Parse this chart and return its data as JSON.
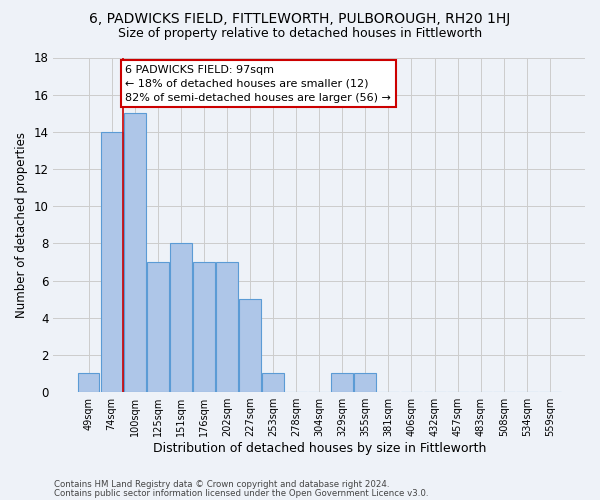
{
  "title": "6, PADWICKS FIELD, FITTLEWORTH, PULBOROUGH, RH20 1HJ",
  "subtitle": "Size of property relative to detached houses in Fittleworth",
  "xlabel": "Distribution of detached houses by size in Fittleworth",
  "ylabel": "Number of detached properties",
  "categories": [
    "49sqm",
    "74sqm",
    "100sqm",
    "125sqm",
    "151sqm",
    "176sqm",
    "202sqm",
    "227sqm",
    "253sqm",
    "278sqm",
    "304sqm",
    "329sqm",
    "355sqm",
    "381sqm",
    "406sqm",
    "432sqm",
    "457sqm",
    "483sqm",
    "508sqm",
    "534sqm",
    "559sqm"
  ],
  "values": [
    1,
    14,
    15,
    7,
    8,
    7,
    7,
    5,
    1,
    0,
    0,
    1,
    1,
    0,
    0,
    0,
    0,
    0,
    0,
    0,
    0
  ],
  "bar_color": "#aec6e8",
  "bar_edgecolor": "#5b9bd5",
  "vline_x": 1.5,
  "vline_color": "#cc0000",
  "annotation_line1": "6 PADWICKS FIELD: 97sqm",
  "annotation_line2": "← 18% of detached houses are smaller (12)",
  "annotation_line3": "82% of semi-detached houses are larger (56) →",
  "annotation_box_edgecolor": "#cc0000",
  "annotation_box_facecolor": "#ffffff",
  "ylim": [
    0,
    18
  ],
  "yticks": [
    0,
    2,
    4,
    6,
    8,
    10,
    12,
    14,
    16,
    18
  ],
  "grid_color": "#cccccc",
  "background_color": "#eef2f8",
  "footer_line1": "Contains HM Land Registry data © Crown copyright and database right 2024.",
  "footer_line2": "Contains public sector information licensed under the Open Government Licence v3.0.",
  "title_fontsize": 10,
  "subtitle_fontsize": 9,
  "annotation_fontsize": 8,
  "ylabel_fontsize": 8.5,
  "xlabel_fontsize": 9
}
